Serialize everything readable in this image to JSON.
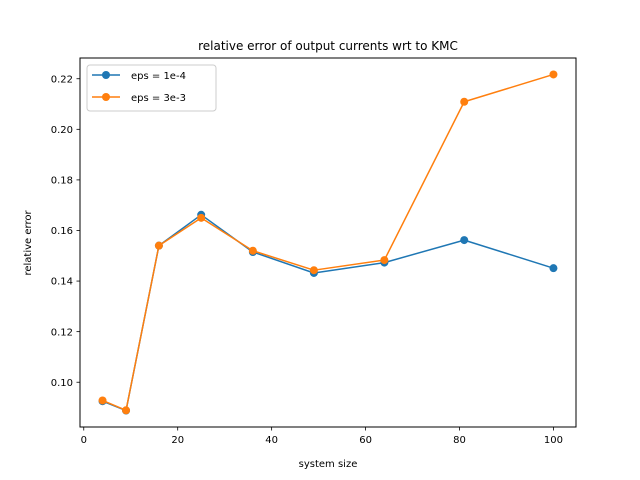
{
  "chart_data": {
    "type": "line",
    "title": "relative error of output currents wrt to KMC",
    "xlabel": "system size",
    "ylabel": "relative error",
    "x": [
      4,
      9,
      16,
      25,
      36,
      49,
      64,
      81,
      100
    ],
    "series": [
      {
        "name": "eps = 1e-4",
        "color": "#1f77b4",
        "values": [
          0.0925,
          0.0888,
          0.154,
          0.1662,
          0.1515,
          0.1432,
          0.1473,
          0.1562,
          0.1451
        ]
      },
      {
        "name": "eps = 3e-3",
        "color": "#ff7f0e",
        "values": [
          0.0928,
          0.0889,
          0.154,
          0.165,
          0.152,
          0.1443,
          0.1483,
          0.2109,
          0.2217
        ]
      }
    ],
    "xlim": [
      -0.8,
      104.8
    ],
    "ylim": [
      0.0823,
      0.2282
    ],
    "xticks": [
      0,
      20,
      40,
      60,
      80,
      100
    ],
    "xtick_labels": [
      "0",
      "20",
      "40",
      "60",
      "80",
      "100"
    ],
    "yticks": [
      0.1,
      0.12,
      0.14,
      0.16,
      0.18,
      0.2,
      0.22
    ],
    "ytick_labels": [
      "0.10",
      "0.12",
      "0.14",
      "0.16",
      "0.18",
      "0.20",
      "0.22"
    ],
    "grid": false,
    "legend_position": "upper-left",
    "marker": "circle"
  }
}
